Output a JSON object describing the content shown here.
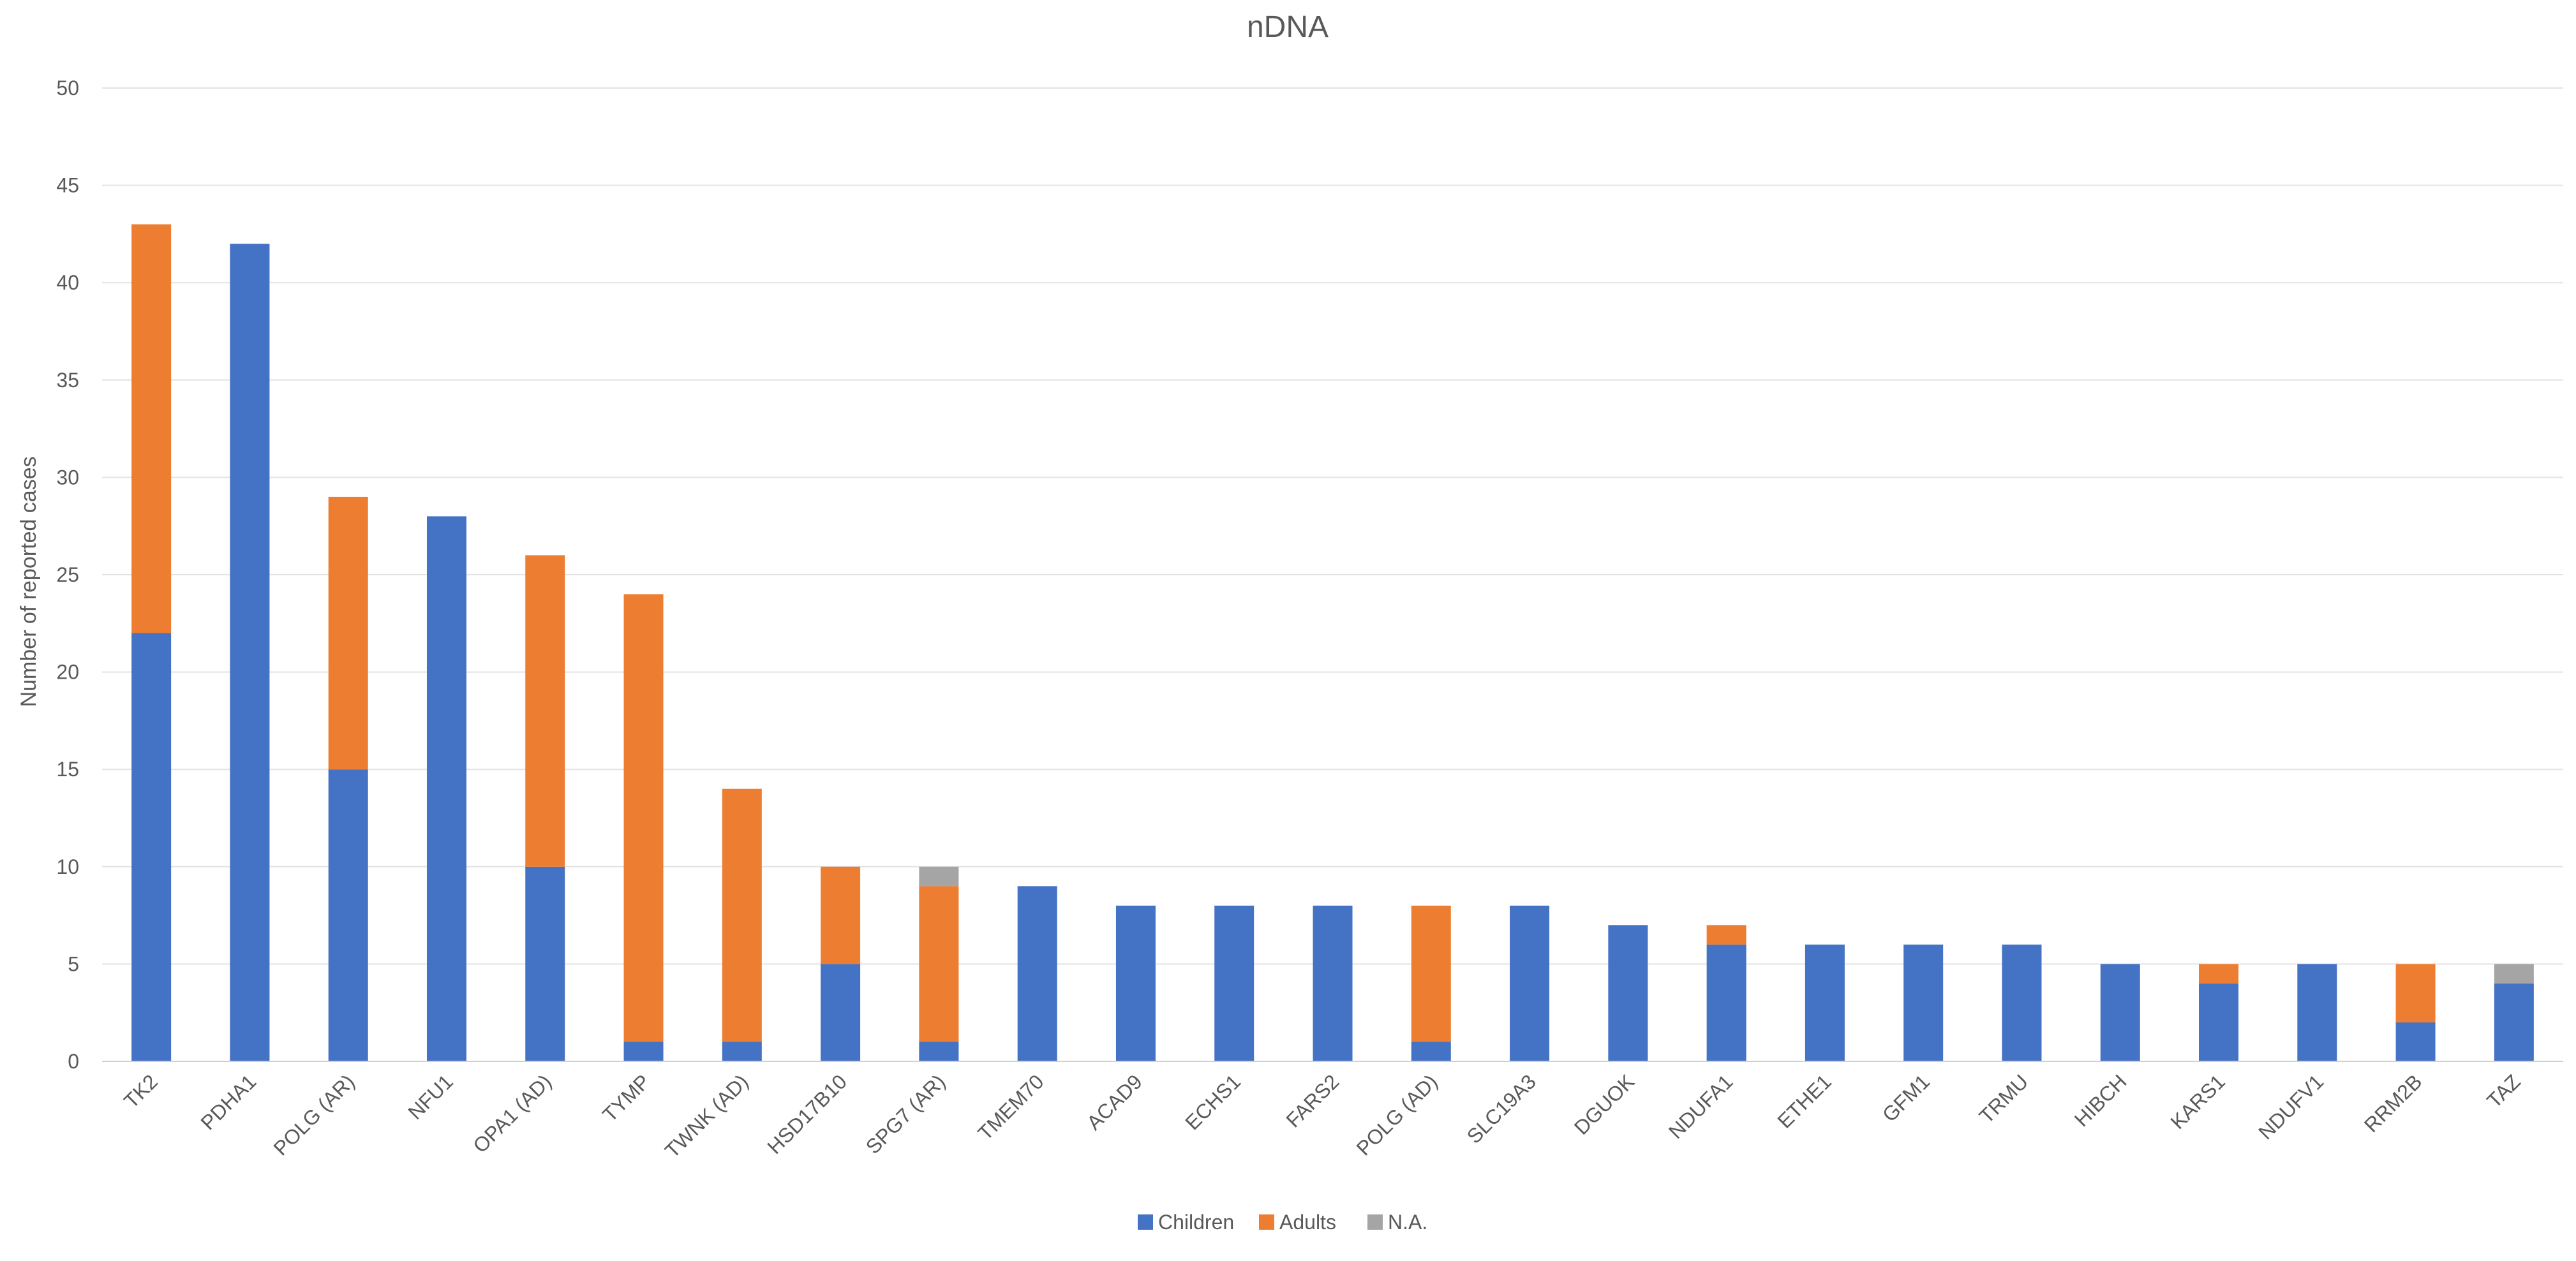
{
  "chart_data": {
    "type": "bar",
    "stacked": true,
    "title": "nDNA",
    "xlabel": "",
    "ylabel": "Number of reported cases",
    "ylim": [
      0,
      50
    ],
    "ytick_step": 5,
    "yticks": [
      "0",
      "5",
      "10",
      "15",
      "20",
      "25",
      "30",
      "35",
      "40",
      "45",
      "50"
    ],
    "grid": true,
    "legend_position": "bottom-center",
    "categories": [
      "TK2",
      "PDHA1",
      "POLG (AR)",
      "NFU1",
      "OPA1 (AD)",
      "TYMP",
      "TWNK (AD)",
      "HSD17B10",
      "SPG7 (AR)",
      "TMEM70",
      "ACAD9",
      "ECHS1",
      "FARS2",
      "POLG (AD)",
      "SLC19A3",
      "DGUOK",
      "NDUFA1",
      "ETHE1",
      "GFM1",
      "TRMU",
      "HIBCH",
      "KARS1",
      "NDUFV1",
      "RRM2B",
      "TAZ"
    ],
    "series": [
      {
        "name": "Children",
        "color": "#4472c4",
        "values": [
          22,
          42,
          15,
          28,
          10,
          1,
          1,
          5,
          1,
          9,
          8,
          8,
          8,
          1,
          8,
          7,
          6,
          6,
          6,
          6,
          5,
          4,
          5,
          2,
          4
        ]
      },
      {
        "name": "Adults",
        "color": "#ed7d31",
        "values": [
          21,
          0,
          14,
          0,
          16,
          23,
          13,
          5,
          8,
          0,
          0,
          0,
          0,
          7,
          0,
          0,
          1,
          0,
          0,
          0,
          0,
          1,
          0,
          3,
          0
        ]
      },
      {
        "name": "N.A.",
        "color": "#a5a5a5",
        "values": [
          0,
          0,
          0,
          0,
          0,
          0,
          0,
          0,
          1,
          0,
          0,
          0,
          0,
          0,
          0,
          0,
          0,
          0,
          0,
          0,
          0,
          0,
          0,
          0,
          1
        ]
      }
    ]
  }
}
